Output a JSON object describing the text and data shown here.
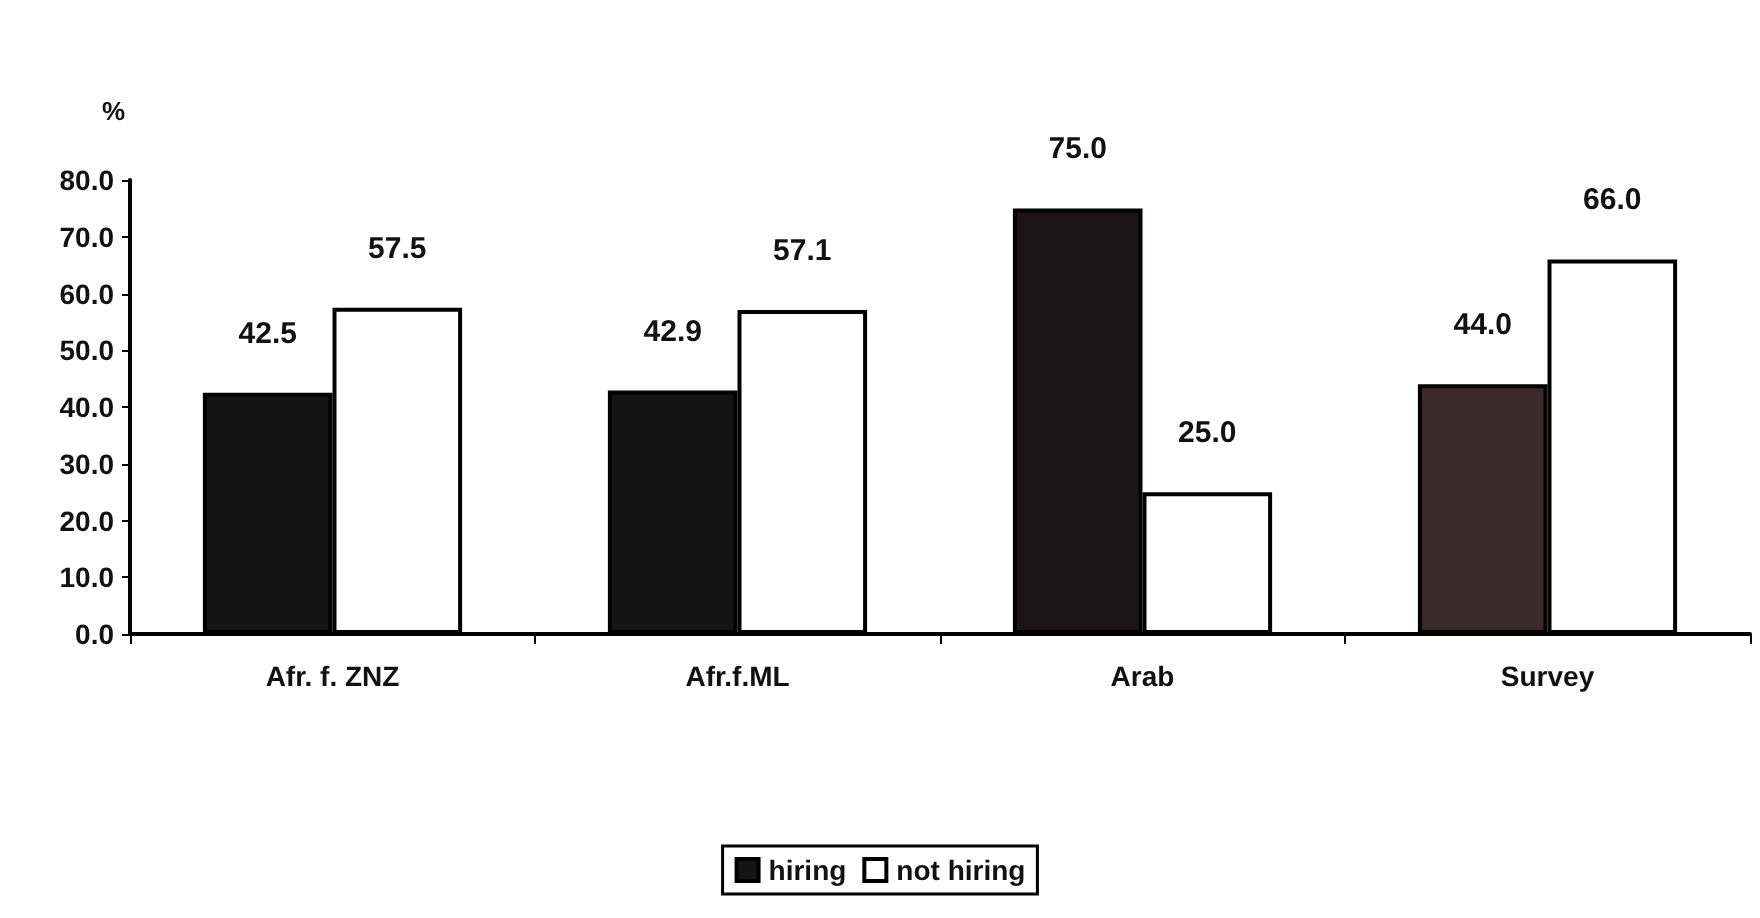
{
  "chart_data": {
    "type": "bar",
    "ylabel": "%",
    "categories": [
      "Afr. f. ZNZ",
      "Afr.f.ML",
      "Arab",
      "Survey"
    ],
    "series": [
      {
        "name": "hiring",
        "color": "#141414",
        "colors": [
          "#141414",
          "#141414",
          "#1c1416",
          "#3a2a2e"
        ],
        "values": [
          42.5,
          42.9,
          75.0,
          44.0
        ],
        "value_labels": [
          "42.5",
          "42.9",
          "75.0",
          "44.0"
        ]
      },
      {
        "name": "not hiring",
        "color": "#ffffff",
        "values": [
          57.5,
          57.1,
          25.0,
          66.0
        ],
        "value_labels": [
          "57.5",
          "57.1",
          "25.0",
          "66.0"
        ]
      }
    ],
    "ylim": [
      0,
      80
    ],
    "yticks": [
      {
        "value": 0,
        "label": "0.0"
      },
      {
        "value": 10,
        "label": "10.0"
      },
      {
        "value": 20,
        "label": "20.0"
      },
      {
        "value": 30,
        "label": "30.0"
      },
      {
        "value": 40,
        "label": "40.0"
      },
      {
        "value": 50,
        "label": "50.0"
      },
      {
        "value": 60,
        "label": "60.0"
      },
      {
        "value": 70,
        "label": "70.0"
      },
      {
        "value": 80,
        "label": "80.0"
      }
    ],
    "grid": false,
    "legend": "bottom"
  }
}
